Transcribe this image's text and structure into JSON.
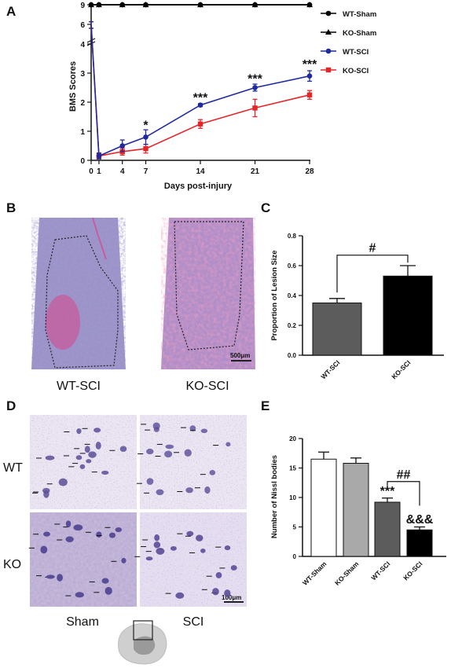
{
  "panels": {
    "a": "A",
    "b": "B",
    "c": "C",
    "d": "D",
    "e": "E"
  },
  "image_b": {
    "captions": [
      "WT-SCI",
      "KO-SCI"
    ],
    "scale_bar": "500μm"
  },
  "image_d": {
    "rows": [
      "WT",
      "KO"
    ],
    "cols": [
      "Sham",
      "SCI"
    ],
    "scale_bar": "100μm"
  },
  "chart_data": [
    {
      "type": "line",
      "xlabel": "Days post-injury",
      "ylabel": "BMS Scores",
      "x": [
        0,
        1,
        4,
        7,
        14,
        21,
        28
      ],
      "x_ticks": [
        "0",
        "1",
        "4",
        "7",
        "14",
        "21",
        "28"
      ],
      "y_ticks_lower": [
        "0",
        "1",
        "2",
        "3",
        "4"
      ],
      "y_ticks_upper": [
        "6",
        "9"
      ],
      "y_axis": "broken",
      "series": [
        {
          "name": "WT-Sham",
          "marker": "circle",
          "color": "#000000",
          "values": [
            9,
            9,
            9,
            9,
            9,
            9,
            9
          ],
          "err": [
            0,
            0,
            0,
            0,
            0,
            0,
            0
          ]
        },
        {
          "name": "KO-Sham",
          "marker": "triangle",
          "color": "#000000",
          "values": [
            9,
            9,
            9,
            9,
            9,
            9,
            9
          ],
          "err": [
            0,
            0,
            0,
            0,
            0,
            0,
            0
          ]
        },
        {
          "name": "WT-SCI",
          "marker": "circle",
          "color": "#1f2a9e",
          "values": [
            6,
            0.15,
            0.5,
            0.8,
            1.9,
            2.5,
            2.9
          ],
          "err": [
            0.4,
            0.1,
            0.2,
            0.25,
            0.05,
            0.12,
            0.18
          ]
        },
        {
          "name": "KO-SCI",
          "marker": "square",
          "color": "#e4262b",
          "values": [
            6,
            0.15,
            0.3,
            0.4,
            1.25,
            1.8,
            2.25
          ],
          "err": [
            0.4,
            0.1,
            0.12,
            0.15,
            0.15,
            0.3,
            0.15
          ]
        }
      ],
      "annotations": [
        {
          "x": 7,
          "text": "*"
        },
        {
          "x": 14,
          "text": "***"
        },
        {
          "x": 21,
          "text": "***"
        },
        {
          "x": 28,
          "text": "***"
        }
      ],
      "legend": "right"
    },
    {
      "type": "bar",
      "ylabel": "Proportion of Lesion Size",
      "categories": [
        "WT-SCI",
        "KO-SCI"
      ],
      "values": [
        0.35,
        0.53
      ],
      "err": [
        0.03,
        0.07
      ],
      "colors": [
        "#5c5c5c",
        "#000000"
      ],
      "ylim": [
        0,
        0.8
      ],
      "y_ticks": [
        "0.0",
        "0.2",
        "0.4",
        "0.6",
        "0.8"
      ],
      "annotation": "#"
    },
    {
      "type": "bar",
      "ylabel": "Number of Nissl bodies",
      "categories": [
        "WT-Sham",
        "KO-Sham",
        "WT-SCI",
        "KO-SCI"
      ],
      "values": [
        16.5,
        15.8,
        9.2,
        4.5
      ],
      "err": [
        1.2,
        0.9,
        0.7,
        0.5
      ],
      "colors": [
        "#ffffff",
        "#a9a9a9",
        "#5c5c5c",
        "#000000"
      ],
      "ylim": [
        0,
        20
      ],
      "y_ticks": [
        "0",
        "5",
        "10",
        "15",
        "20"
      ],
      "annotations": [
        "***",
        "##",
        "&&&"
      ]
    }
  ]
}
